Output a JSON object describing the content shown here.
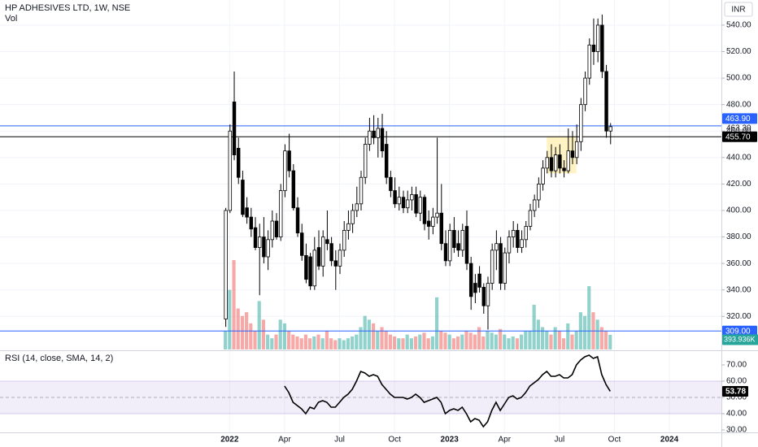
{
  "chart_data": {
    "type": "candlestick",
    "title": "HP ADHESIVES LTD, 1W, NSE",
    "volume_title": "Vol",
    "currency": "INR",
    "rsi_title": "RSI (14, close, SMA, 14, 2)",
    "xlim": [
      -53.3,
      117.3
    ],
    "xticks": [
      {
        "value": 1,
        "label": "2022"
      },
      {
        "value": 14,
        "label": "Apr"
      },
      {
        "value": 27,
        "label": "Jul"
      },
      {
        "value": 40,
        "label": "Oct"
      },
      {
        "value": 53,
        "label": "2023"
      },
      {
        "value": 66,
        "label": "Apr"
      },
      {
        "value": 79,
        "label": "Jul"
      },
      {
        "value": 92,
        "label": "Oct"
      },
      {
        "value": 105,
        "label": "2024"
      }
    ],
    "ylim": [
      295,
      559
    ],
    "yticks": [
      {
        "value": 320,
        "label": "320.00"
      },
      {
        "value": 340,
        "label": "340.00"
      },
      {
        "value": 360,
        "label": "360.00"
      },
      {
        "value": 380,
        "label": "380.00"
      },
      {
        "value": 400,
        "label": "400.00"
      },
      {
        "value": 420,
        "label": "420.00"
      },
      {
        "value": 440,
        "label": "440.00"
      },
      {
        "value": 460,
        "label": "460.00"
      },
      {
        "value": 480,
        "label": "480.00"
      },
      {
        "value": 500,
        "label": "500.00"
      },
      {
        "value": 520,
        "label": "520.00"
      },
      {
        "value": 540,
        "label": "540.00"
      }
    ],
    "grid": true,
    "up_color": "#ffffff",
    "down_color": "#000000",
    "open": [
      318,
      400,
      482,
      447,
      423,
      402,
      395,
      387,
      372,
      380,
      365,
      378,
      392,
      380,
      415,
      445,
      430,
      402,
      383,
      366,
      365,
      343,
      372,
      358,
      378,
      375,
      362,
      358,
      370,
      385,
      390,
      400,
      405,
      425,
      450,
      460,
      455,
      462,
      450,
      425,
      415,
      405,
      410,
      402,
      408,
      412,
      398,
      410,
      392,
      388,
      395,
      398,
      375,
      362,
      385,
      375,
      370,
      388,
      360,
      345,
      352,
      342,
      328,
      345,
      370,
      375,
      345,
      368,
      380,
      385,
      372,
      378,
      388,
      400,
      408,
      420,
      432,
      440,
      430,
      442,
      432,
      430,
      445,
      440,
      452,
      480,
      500,
      525,
      520,
      540,
      505,
      460
    ],
    "high": [
      402,
      465,
      505,
      455,
      430,
      410,
      402,
      395,
      390,
      395,
      385,
      400,
      398,
      420,
      450,
      458,
      435,
      410,
      390,
      375,
      368,
      380,
      385,
      385,
      400,
      380,
      370,
      375,
      392,
      400,
      405,
      418,
      430,
      455,
      470,
      472,
      470,
      473,
      460,
      430,
      425,
      418,
      415,
      415,
      418,
      418,
      415,
      412,
      400,
      402,
      455,
      420,
      385,
      390,
      395,
      385,
      390,
      400,
      365,
      352,
      358,
      345,
      350,
      375,
      385,
      380,
      372,
      385,
      392,
      390,
      385,
      392,
      405,
      412,
      425,
      438,
      445,
      450,
      448,
      450,
      438,
      462,
      460,
      465,
      485,
      505,
      530,
      545,
      545,
      548,
      510,
      466
    ],
    "low": [
      312,
      398,
      438,
      420,
      395,
      390,
      380,
      370,
      336,
      360,
      355,
      372,
      378,
      377,
      410,
      425,
      400,
      380,
      362,
      345,
      340,
      340,
      355,
      350,
      370,
      358,
      340,
      352,
      365,
      378,
      383,
      395,
      400,
      420,
      445,
      450,
      440,
      440,
      420,
      410,
      402,
      400,
      398,
      398,
      400,
      395,
      392,
      385,
      378,
      382,
      390,
      370,
      358,
      358,
      368,
      365,
      365,
      355,
      325,
      330,
      338,
      322,
      310,
      340,
      355,
      340,
      340,
      360,
      372,
      368,
      368,
      372,
      385,
      395,
      402,
      415,
      428,
      425,
      425,
      428,
      425,
      428,
      435,
      435,
      445,
      475,
      495,
      510,
      512,
      500,
      455,
      450
    ],
    "close": [
      400,
      460,
      442,
      425,
      397,
      395,
      386,
      372,
      380,
      365,
      378,
      392,
      380,
      415,
      445,
      430,
      402,
      383,
      366,
      348,
      343,
      370,
      358,
      380,
      375,
      362,
      358,
      370,
      385,
      390,
      400,
      405,
      425,
      450,
      460,
      455,
      462,
      445,
      425,
      415,
      405,
      410,
      402,
      408,
      412,
      398,
      410,
      390,
      388,
      395,
      398,
      375,
      362,
      385,
      372,
      370,
      385,
      360,
      335,
      338,
      342,
      328,
      345,
      370,
      375,
      345,
      368,
      380,
      385,
      372,
      378,
      388,
      400,
      408,
      420,
      432,
      440,
      430,
      442,
      432,
      430,
      445,
      440,
      452,
      480,
      500,
      525,
      520,
      540,
      505,
      460,
      463.3
    ],
    "last_close_label": "463.30",
    "volume": [
      500000,
      1600000,
      2400000,
      1100000,
      900000,
      1000000,
      700000,
      500000,
      1300000,
      800000,
      400000,
      300000,
      400000,
      800000,
      700000,
      500000,
      400000,
      350000,
      300000,
      400000,
      300000,
      350000,
      400000,
      300000,
      500000,
      300000,
      250000,
      300000,
      250000,
      300000,
      350000,
      400000,
      600000,
      900000,
      800000,
      700000,
      500000,
      600000,
      500000,
      400000,
      350000,
      300000,
      300000,
      400000,
      300000,
      350000,
      400000,
      450000,
      300000,
      350000,
      1400000,
      500000,
      450000,
      400000,
      300000,
      350000,
      400000,
      500000,
      450000,
      400000,
      600000,
      350000,
      500000,
      450000,
      400000,
      550000,
      400000,
      300000,
      350000,
      300000,
      400000,
      500000,
      500000,
      1200000,
      800000,
      600000,
      500000,
      400000,
      600000,
      500000,
      300000,
      700000,
      400000,
      500000,
      1000000,
      900000,
      1700000,
      1000000,
      800000,
      600000,
      500000,
      393936
    ],
    "last_volume_label": "393.936K",
    "volume_up_color": "#26a69a",
    "volume_down_color": "#ef5350",
    "horizontal_lines": [
      {
        "value": 463.9,
        "label": "463.90",
        "color": "#2962ff"
      },
      {
        "value": 455.7,
        "label": "455.70",
        "color": "#000000"
      },
      {
        "value": 309,
        "label": "309.00",
        "color": "#2962ff"
      }
    ],
    "highlight": {
      "x": [
        76,
        83
      ],
      "y": [
        428,
        456
      ],
      "color": "#fff3c4"
    },
    "rsi": {
      "ylim": [
        28.5,
        78.5
      ],
      "yticks": [
        {
          "value": 30,
          "label": "30.00"
        },
        {
          "value": 40,
          "label": "40.00"
        },
        {
          "value": 50,
          "label": "50.00"
        },
        {
          "value": 60,
          "label": "60.00"
        },
        {
          "value": 70,
          "label": "70.00"
        }
      ],
      "band": [
        40,
        60
      ],
      "midline": 50,
      "color": "#000000",
      "values": [
        null,
        null,
        null,
        null,
        null,
        null,
        null,
        null,
        null,
        null,
        null,
        null,
        null,
        null,
        57,
        53,
        47,
        45,
        43,
        40,
        44,
        43,
        47,
        48,
        47,
        44,
        44,
        47,
        50,
        52,
        55,
        60,
        66,
        65,
        63,
        64,
        63,
        58,
        55,
        52,
        50,
        50,
        50,
        49,
        50,
        52,
        50,
        47,
        48,
        49,
        50,
        47,
        40,
        42,
        43,
        42,
        44,
        40,
        35,
        37,
        36,
        32,
        35,
        42,
        47,
        42,
        46,
        50,
        51,
        49,
        50,
        53,
        57,
        59,
        61,
        64,
        66,
        63,
        63,
        64,
        62,
        62,
        64,
        70,
        73,
        75,
        76,
        74,
        75,
        64,
        58,
        53.78
      ],
      "last_label": "53.78"
    }
  }
}
